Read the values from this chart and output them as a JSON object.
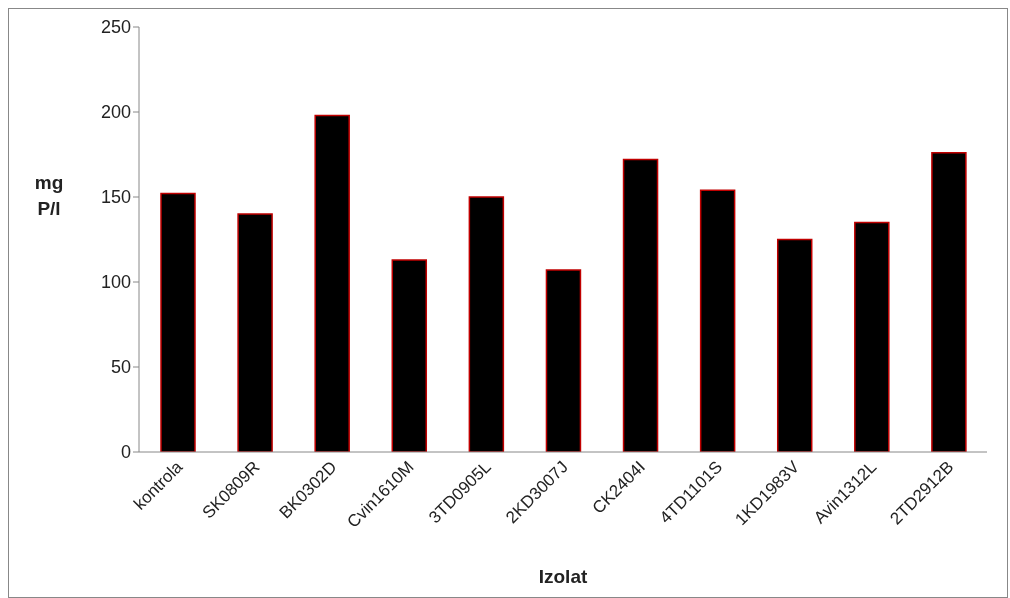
{
  "chart_data": {
    "type": "bar",
    "xlabel": "Izolat",
    "ylabel": "mg P/l",
    "categories": [
      "kontrola",
      "SK0809R",
      "BK0302D",
      "Cvin1610M",
      "3TD0905L",
      "2KD3007J",
      "CK2404I",
      "4TD1101S",
      "1KD1983V",
      "Avin1312L",
      "2TD2912B"
    ],
    "values": [
      152,
      140,
      198,
      113,
      150,
      107,
      172,
      154,
      125,
      135,
      176
    ],
    "color": "#000000",
    "ylim": [
      0,
      250
    ],
    "yticks": [
      0,
      50,
      100,
      150,
      200,
      250
    ],
    "grid": false,
    "legend": false
  }
}
